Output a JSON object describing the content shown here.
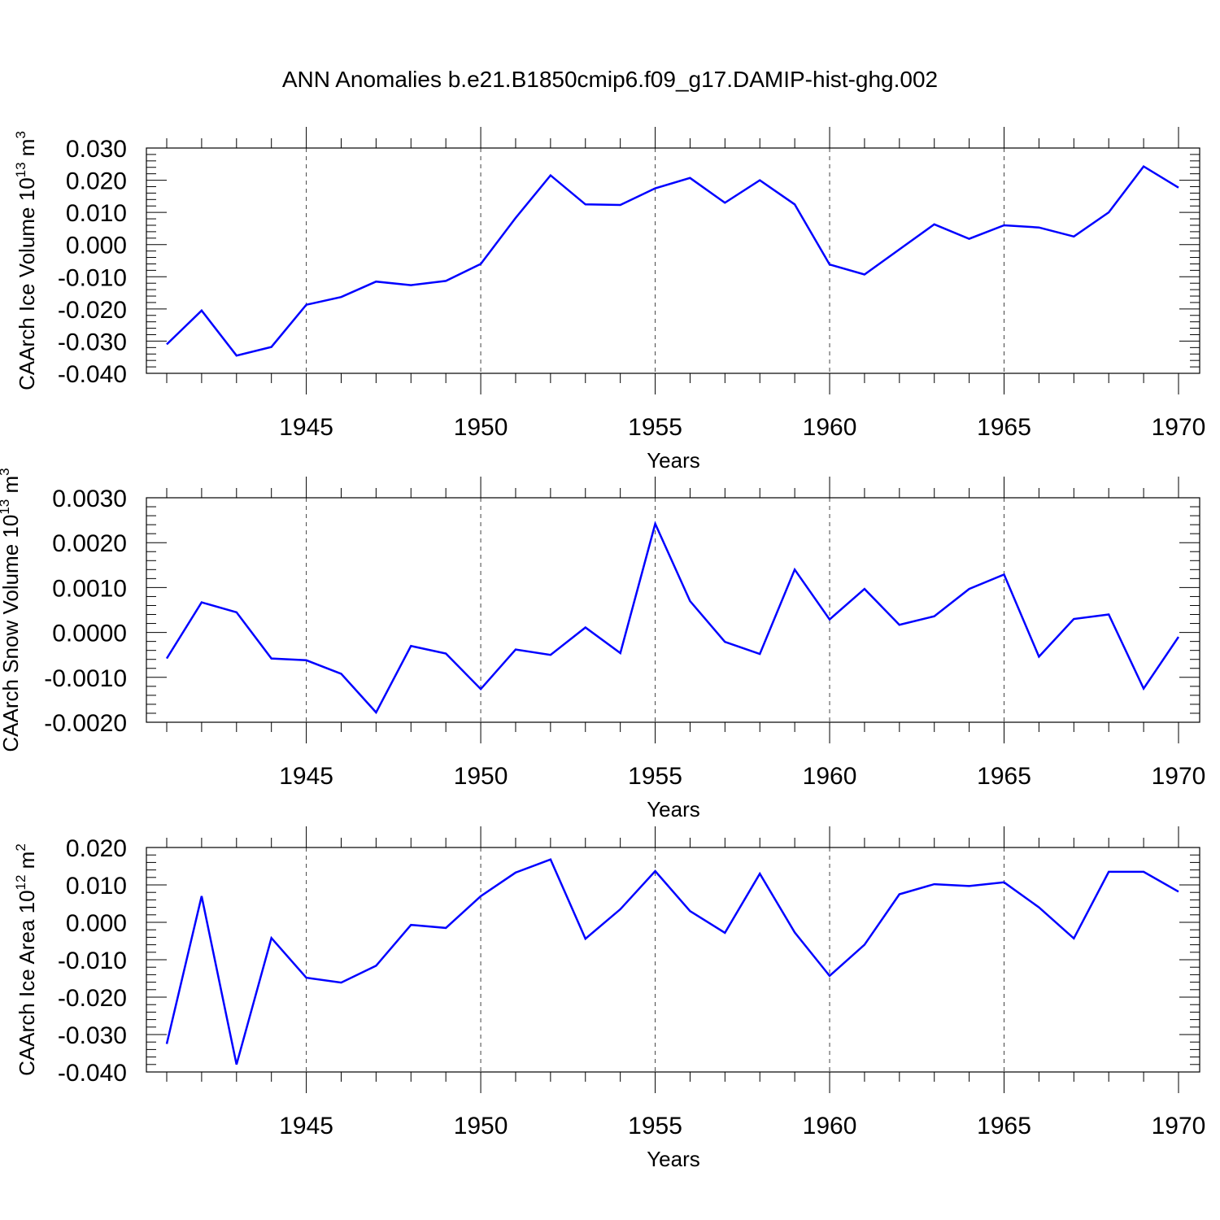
{
  "title": "ANN Anomalies b.e21.B1850cmip6.f09_g17.DAMIP-hist-ghg.002",
  "line_color": "#0000ff",
  "chart_data": [
    {
      "type": "line",
      "ylabel_main": "CAArch Ice Volume 10",
      "ylabel_exp": "13",
      "ylabel_unit": "m",
      "ylabel_unit_exp": "3",
      "xlabel": "Years",
      "xlim": [
        1941,
        1970
      ],
      "ylim": [
        -0.04,
        0.03
      ],
      "yticks": [
        -0.04,
        -0.03,
        -0.02,
        -0.01,
        0.0,
        0.01,
        0.02,
        0.03
      ],
      "ytick_labels": [
        "-0.040",
        "-0.030",
        "-0.020",
        "-0.010",
        "0.000",
        "0.010",
        "0.020",
        "0.030"
      ],
      "xticks": [
        1945,
        1950,
        1955,
        1960,
        1965,
        1970
      ],
      "xtick_labels": [
        "1945",
        "1950",
        "1955",
        "1960",
        "1965",
        "1970"
      ],
      "x": [
        1941,
        1942,
        1943,
        1944,
        1945,
        1946,
        1947,
        1948,
        1949,
        1950,
        1951,
        1952,
        1953,
        1954,
        1955,
        1956,
        1957,
        1958,
        1959,
        1960,
        1961,
        1962,
        1963,
        1964,
        1965,
        1966,
        1967,
        1968,
        1969,
        1970
      ],
      "y": [
        -0.031,
        -0.0205,
        -0.0345,
        -0.0318,
        -0.0187,
        -0.0163,
        -0.0115,
        -0.0126,
        -0.0113,
        -0.006,
        0.0083,
        0.0215,
        0.0125,
        0.0123,
        0.0175,
        0.0207,
        0.013,
        0.02,
        0.0125,
        -0.0062,
        -0.0093,
        -0.0015,
        0.0063,
        0.0018,
        0.006,
        0.0053,
        0.0025,
        0.01,
        0.0243,
        0.0177
      ]
    },
    {
      "type": "line",
      "ylabel_main": "CAArch Snow Volume 10",
      "ylabel_exp": "13",
      "ylabel_unit": "m",
      "ylabel_unit_exp": "3",
      "xlabel": "Years",
      "xlim": [
        1941,
        1970
      ],
      "ylim": [
        -0.002,
        0.003
      ],
      "yticks": [
        -0.002,
        -0.001,
        0.0,
        0.001,
        0.002,
        0.003
      ],
      "ytick_labels": [
        "-0.0020",
        "-0.0010",
        "0.0000",
        "0.0010",
        "0.0020",
        "0.0030"
      ],
      "xticks": [
        1945,
        1950,
        1955,
        1960,
        1965,
        1970
      ],
      "xtick_labels": [
        "1945",
        "1950",
        "1955",
        "1960",
        "1965",
        "1970"
      ],
      "x": [
        1941,
        1942,
        1943,
        1944,
        1945,
        1946,
        1947,
        1948,
        1949,
        1950,
        1951,
        1952,
        1953,
        1954,
        1955,
        1956,
        1957,
        1958,
        1959,
        1960,
        1961,
        1962,
        1963,
        1964,
        1965,
        1966,
        1967,
        1968,
        1969,
        1970
      ],
      "y": [
        -0.00058,
        0.00067,
        0.00045,
        -0.00058,
        -0.00062,
        -0.00092,
        -0.00178,
        -0.0003,
        -0.00047,
        -0.00126,
        -0.00038,
        -0.0005,
        0.00011,
        -0.00046,
        0.00242,
        0.0007,
        -0.00021,
        -0.00048,
        0.0014,
        0.00029,
        0.00097,
        0.00017,
        0.00036,
        0.00097,
        0.00129,
        -0.00054,
        0.0003,
        0.0004,
        -0.00125,
        -0.0001
      ]
    },
    {
      "type": "line",
      "ylabel_main": "CAArch Ice Area 10",
      "ylabel_exp": "12",
      "ylabel_unit": "m",
      "ylabel_unit_exp": "2",
      "xlabel": "Years",
      "xlim": [
        1941,
        1970
      ],
      "ylim": [
        -0.04,
        0.02
      ],
      "yticks": [
        -0.04,
        -0.03,
        -0.02,
        -0.01,
        0.0,
        0.01,
        0.02
      ],
      "ytick_labels": [
        "-0.040",
        "-0.030",
        "-0.020",
        "-0.010",
        "0.000",
        "0.010",
        "0.020"
      ],
      "xticks": [
        1945,
        1950,
        1955,
        1960,
        1965,
        1970
      ],
      "xtick_labels": [
        "1945",
        "1950",
        "1955",
        "1960",
        "1965",
        "1970"
      ],
      "x": [
        1941,
        1942,
        1943,
        1944,
        1945,
        1946,
        1947,
        1948,
        1949,
        1950,
        1951,
        1952,
        1953,
        1954,
        1955,
        1956,
        1957,
        1958,
        1959,
        1960,
        1961,
        1962,
        1963,
        1964,
        1965,
        1966,
        1967,
        1968,
        1969,
        1970
      ],
      "y": [
        -0.0325,
        0.007,
        -0.038,
        -0.0042,
        -0.0148,
        -0.0161,
        -0.0116,
        -0.0007,
        -0.0015,
        0.007,
        0.0133,
        0.0168,
        -0.0044,
        0.0035,
        0.0137,
        0.003,
        -0.0028,
        0.013,
        -0.0027,
        -0.0143,
        -0.006,
        0.0075,
        0.0102,
        0.0097,
        0.0107,
        0.004,
        -0.0043,
        0.0135,
        0.0135,
        0.0082
      ]
    }
  ]
}
